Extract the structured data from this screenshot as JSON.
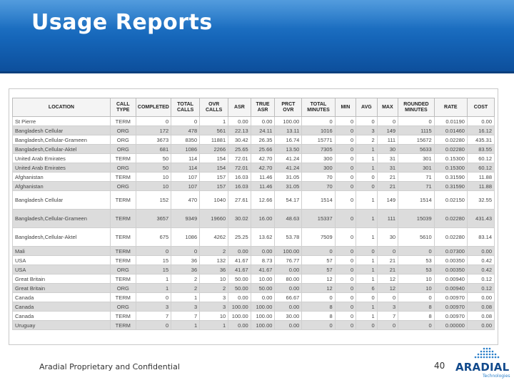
{
  "slide": {
    "title": "Usage Reports",
    "footer": "Aradial Proprietary and Confidential",
    "page_number": "40"
  },
  "logo": {
    "word": "ARADIAL",
    "tagline": "Technologies"
  },
  "colors": {
    "banner": "#1565b8",
    "row_alt": "#dcdcdc",
    "logo": "#124a8c"
  },
  "table": {
    "columns": [
      "LOCATION",
      "CALL TYPE",
      "COMPLETED",
      "TOTAL CALLS",
      "OVR CALLS",
      "ASR",
      "TRUE ASR",
      "PRCT OVR",
      "TOTAL MINUTES",
      "MIN",
      "AVG",
      "MAX",
      "ROUNDED MINUTES",
      "RATE",
      "COST"
    ],
    "rows": [
      [
        "St Pierre",
        "TERM",
        "0",
        "0",
        "1",
        "0.00",
        "0.00",
        "100.00",
        "0",
        "0",
        "0",
        "0",
        "0",
        "0.01190",
        "0.00"
      ],
      [
        "Bangladesh Cellular",
        "ORG",
        "172",
        "478",
        "561",
        "22.13",
        "24.11",
        "13.11",
        "1016",
        "0",
        "3",
        "149",
        "1115",
        "0.01460",
        "16.12"
      ],
      [
        "Bangladesh,Cellular-Grameen",
        "ORG",
        "3673",
        "8350",
        "11881",
        "30.42",
        "26.35",
        "16.74",
        "15771",
        "0",
        "2",
        "111",
        "15672",
        "0.02280",
        "435.31"
      ],
      [
        "Bangladesh,Cellular-Aktel",
        "ORG",
        "681",
        "1086",
        "2266",
        "25.65",
        "25.66",
        "13.50",
        "7305",
        "0",
        "1",
        "30",
        "5633",
        "0.02280",
        "83.55"
      ],
      [
        "United Arab Emirates",
        "TERM",
        "50",
        "114",
        "154",
        "72.01",
        "42.70",
        "41.24",
        "300",
        "0",
        "1",
        "31",
        "301",
        "0.15300",
        "60.12"
      ],
      [
        "United Arab Emirates",
        "ORG",
        "50",
        "114",
        "154",
        "72.01",
        "42.70",
        "41.24",
        "300",
        "0",
        "1",
        "31",
        "301",
        "0.15300",
        "60.12"
      ],
      [
        "Afghanistan",
        "TERM",
        "10",
        "107",
        "157",
        "16.03",
        "11.46",
        "31.05",
        "70",
        "0",
        "0",
        "21",
        "71",
        "0.31590",
        "11.88"
      ],
      [
        "Afghanistan",
        "ORG",
        "10",
        "107",
        "157",
        "16.03",
        "11.46",
        "31.05",
        "70",
        "0",
        "0",
        "21",
        "71",
        "0.31590",
        "11.88"
      ],
      [
        "Bangladesh Cellular",
        "TERM",
        "152",
        "470",
        "1040",
        "27.61",
        "12.66",
        "54.17",
        "1514",
        "0",
        "1",
        "149",
        "1514",
        "0.02150",
        "32.55"
      ],
      [
        "Bangladesh,Cellular-Grameen",
        "TERM",
        "3657",
        "9349",
        "19660",
        "30.02",
        "16.00",
        "48.63",
        "15337",
        "0",
        "1",
        "111",
        "15039",
        "0.02280",
        "431.43"
      ],
      [
        "Bangladesh,Cellular-Aktel",
        "TERM",
        "675",
        "1086",
        "4262",
        "25.25",
        "13.62",
        "53.78",
        "7509",
        "0",
        "1",
        "30",
        "5610",
        "0.02280",
        "83.14"
      ],
      [
        "Mali",
        "TERM",
        "0",
        "0",
        "2",
        "0.00",
        "0.00",
        "100.00",
        "0",
        "0",
        "0",
        "0",
        "0",
        "0.07300",
        "0.00"
      ],
      [
        "USA",
        "TERM",
        "15",
        "36",
        "132",
        "41.67",
        "8.73",
        "76.77",
        "57",
        "0",
        "1",
        "21",
        "53",
        "0.00350",
        "0.42"
      ],
      [
        "USA",
        "ORG",
        "15",
        "36",
        "36",
        "41.67",
        "41.67",
        "0.00",
        "57",
        "0",
        "1",
        "21",
        "53",
        "0.00350",
        "0.42"
      ],
      [
        "Great Britain",
        "TERM",
        "1",
        "2",
        "10",
        "50.00",
        "10.00",
        "80.00",
        "12",
        "0",
        "1",
        "12",
        "10",
        "0.00940",
        "0.12"
      ],
      [
        "Great Britain",
        "ORG",
        "1",
        "2",
        "2",
        "50.00",
        "50.00",
        "0.00",
        "12",
        "0",
        "6",
        "12",
        "10",
        "0.00940",
        "0.12"
      ],
      [
        "Canada",
        "TERM",
        "0",
        "1",
        "3",
        "0.00",
        "0.00",
        "66.67",
        "0",
        "0",
        "0",
        "0",
        "0",
        "0.00970",
        "0.00"
      ],
      [
        "Canada",
        "ORG",
        "3",
        "3",
        "3",
        "100.00",
        "100.00",
        "0.00",
        "8",
        "0",
        "1",
        "3",
        "8",
        "0.00970",
        "0.08"
      ],
      [
        "Canada",
        "TERM",
        "7",
        "7",
        "10",
        "100.00",
        "100.00",
        "30.00",
        "8",
        "0",
        "1",
        "7",
        "8",
        "0.00970",
        "0.08"
      ],
      [
        "Uruguay",
        "TERM",
        "0",
        "1",
        "1",
        "0.00",
        "100.00",
        "0.00",
        "0",
        "0",
        "0",
        "0",
        "0",
        "0.00000",
        "0.00"
      ]
    ]
  }
}
